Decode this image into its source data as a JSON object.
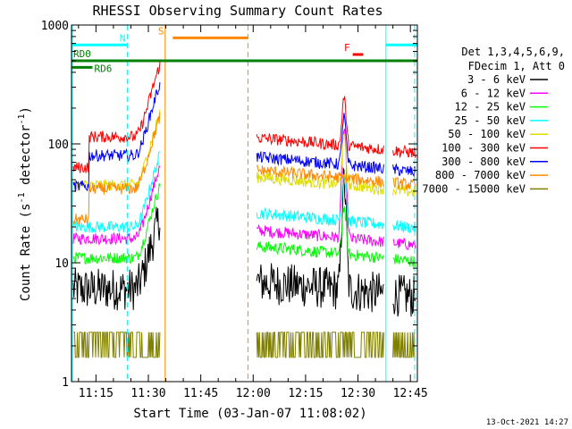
{
  "chart_data": {
    "type": "line",
    "title": "RHESSI Observing Summary Count Rates",
    "xlabel": "Start Time (03-Jan-07 11:08:02)",
    "ylabel": "Count Rate (s⁻¹ detector⁻¹)",
    "ylabel_main": "Count Rate (s",
    "ylabel_sup1": "-1",
    "ylabel_mid": " detector",
    "ylabel_sup2": "-1",
    "ylabel_end": ")",
    "y_scale": "log",
    "ylim": [
      1,
      1000
    ],
    "xlim_minutes": [
      668,
      767
    ],
    "x_tick_minutes": [
      675,
      690,
      705,
      720,
      735,
      750,
      765
    ],
    "x_tick_labels": [
      "11:15",
      "11:30",
      "11:45",
      "12:00",
      "12:15",
      "12:30",
      "12:45"
    ],
    "y_tick_values": [
      1,
      10,
      100,
      1000
    ],
    "y_tick_labels": [
      "1",
      "10",
      "100",
      "1000"
    ],
    "legend_position": "right",
    "legend_header": [
      "Det 1,3,4,5,6,9,",
      "FDecim 1, Att 0"
    ],
    "grid": false,
    "data_gaps_minutes": [
      [
        693.5,
        721
      ],
      [
        757.5,
        760
      ]
    ],
    "series": [
      {
        "name": "3 - 6 keV",
        "color": "#000000",
        "pre": 6.0,
        "post": 5.5
      },
      {
        "name": "6 - 12 keV",
        "color": "#ff00ff",
        "pre": 16,
        "post": 15
      },
      {
        "name": "12 - 25 keV",
        "color": "#00ff00",
        "pre": 11,
        "post": 11
      },
      {
        "name": "25 - 50 keV",
        "color": "#00ffff",
        "pre": 20,
        "post": 21
      },
      {
        "name": "50 - 100 keV",
        "color": "#dddd00",
        "pre": 45,
        "post": 42
      },
      {
        "name": "100 - 300 keV",
        "color": "#ff0000",
        "pre": 115,
        "post": 90
      },
      {
        "name": "300 - 800 keV",
        "color": "#0000ff",
        "pre": 80,
        "post": 62
      },
      {
        "name": "800 - 7000 keV",
        "color": "#ff8800",
        "pre": 42,
        "post": 48
      },
      {
        "name": "7000 - 15000 keV",
        "color": "#808000",
        "pre": 1.6,
        "post": 1.6
      }
    ],
    "annotations": [
      {
        "label": "N",
        "color": "#00ffff",
        "y": 680,
        "intervals": [
          [
            668,
            684
          ],
          [
            758,
            767
          ]
        ]
      },
      {
        "label": "S",
        "color": "#ff8800",
        "y": 780,
        "intervals": [
          [
            697,
            718.5
          ]
        ]
      },
      {
        "label": "F",
        "color": "#ff0000",
        "y": 565,
        "intervals": [
          [
            748.5,
            751.5
          ]
        ]
      },
      {
        "label": "RD0",
        "color": "#008000",
        "y": 500,
        "intervals": [
          [
            668,
            767
          ]
        ]
      },
      {
        "label": "RD6",
        "color": "#008000",
        "y": 440,
        "intervals": [
          [
            668,
            674
          ]
        ]
      }
    ],
    "vertical_lines": [
      {
        "x": 668.2,
        "color": "#00ffff",
        "style": "solid"
      },
      {
        "x": 684,
        "color": "#00ffff",
        "style": "dashed"
      },
      {
        "x": 694.8,
        "color": "#ff8800",
        "style": "solid"
      },
      {
        "x": 718.5,
        "color": "#ff8800",
        "style": "dashed"
      },
      {
        "x": 758,
        "color": "#00ffff",
        "style": "solid"
      },
      {
        "x": 766.2,
        "color": "#00ffff",
        "style": "dashed"
      }
    ]
  },
  "footer_date": "13-Oct-2021 14:27"
}
